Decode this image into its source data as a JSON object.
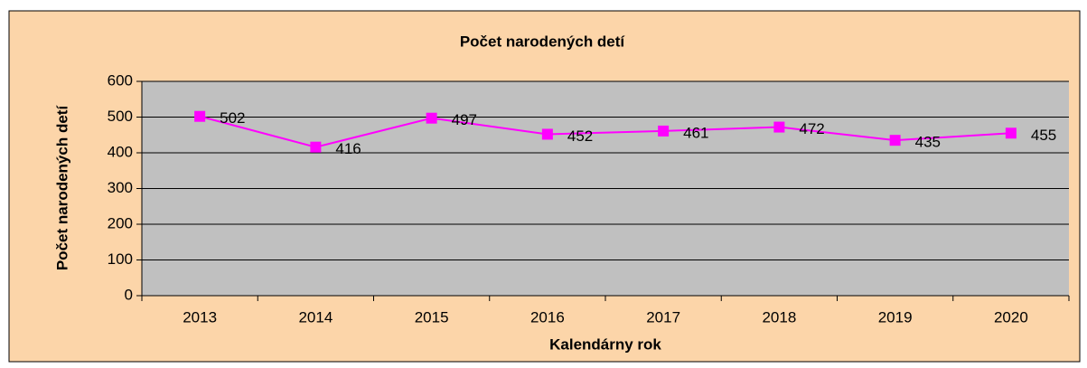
{
  "chart_data": {
    "type": "line",
    "title": "Počet narodených detí",
    "x_label": "Kalendárny rok",
    "y_label": "Počet narodených detí",
    "categories": [
      "2013",
      "2014",
      "2015",
      "2016",
      "2017",
      "2018",
      "2019",
      "2020"
    ],
    "series": [
      {
        "name": "Počet narodených detí",
        "color": "#ff00ff",
        "values": [
          502,
          416,
          497,
          452,
          461,
          472,
          435,
          455
        ]
      }
    ],
    "ylim": [
      0,
      600
    ],
    "yticks": [
      0,
      100,
      200,
      300,
      400,
      500,
      600
    ],
    "grid": true
  }
}
